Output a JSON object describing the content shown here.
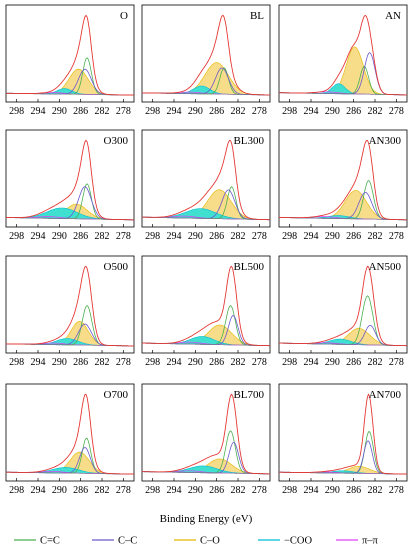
{
  "colors": {
    "C=C": "#4caf50",
    "C–C": "#6a5acd",
    "C–O": "#e6b800",
    "-COO": "#00bcd4",
    "π–π": "#e040fb",
    "envelope": "#e53935",
    "fill_CO": "#f7dc8a",
    "fill_COO": "#40e0d0"
  },
  "chart_data": {
    "type": "line",
    "xlabel": "Binding Energy (eV)",
    "xlim": [
      300,
      276
    ],
    "x_ticks": [
      298,
      294,
      290,
      286,
      282,
      278
    ],
    "legend_position": "bottom",
    "legend": [
      "C=C",
      "C–C",
      "C–O",
      "−COO",
      "π–π"
    ],
    "panels": [
      {
        "title": "O",
        "peaks": {
          "CC_sp2": [
            284.8,
            0.8,
            0.8
          ],
          "CC": [
            285.2,
            1.2,
            0.55
          ],
          "CO": [
            286.4,
            1.8,
            0.55
          ],
          "COO": [
            289.0,
            1.4,
            0.12
          ],
          "pipi": [
            291.0,
            2.0,
            0.03
          ]
        }
      },
      {
        "title": "BL",
        "peaks": {
          "CC_sp2": [
            284.6,
            0.8,
            0.5
          ],
          "CC": [
            285.0,
            1.2,
            0.5
          ],
          "CO": [
            286.0,
            2.2,
            0.6
          ],
          "COO": [
            288.8,
            1.5,
            0.15
          ],
          "pipi": [
            291.0,
            2.0,
            0.03
          ]
        }
      },
      {
        "title": "AN",
        "peaks": {
          "CC_sp2": [
            284.0,
            0.8,
            0.5
          ],
          "CC": [
            283.0,
            1.0,
            0.75
          ],
          "CO": [
            285.8,
            1.6,
            0.85
          ],
          "COO": [
            288.8,
            1.2,
            0.18
          ],
          "pipi": [
            291.0,
            2.0,
            0.03
          ]
        }
      },
      {
        "title": "O300",
        "peaks": {
          "CC_sp2": [
            284.8,
            0.8,
            0.6
          ],
          "CC": [
            285.2,
            1.2,
            0.55
          ],
          "CO": [
            286.8,
            2.0,
            0.25
          ],
          "COO": [
            289.5,
            2.8,
            0.18
          ],
          "pipi": [
            292.0,
            2.0,
            0.03
          ]
        }
      },
      {
        "title": "BL300",
        "peaks": {
          "CC_sp2": [
            283.2,
            0.8,
            0.5
          ],
          "CC": [
            283.8,
            1.2,
            0.45
          ],
          "CO": [
            285.5,
            2.2,
            0.45
          ],
          "COO": [
            289.0,
            2.8,
            0.15
          ],
          "pipi": [
            292.0,
            2.0,
            0.03
          ]
        }
      },
      {
        "title": "AN300",
        "peaks": {
          "CC_sp2": [
            283.2,
            0.9,
            0.65
          ],
          "CC": [
            283.8,
            1.2,
            0.45
          ],
          "CO": [
            285.6,
            2.0,
            0.48
          ],
          "COO": [
            288.8,
            2.0,
            0.05
          ],
          "pipi": [
            291.5,
            2.0,
            0.03
          ]
        }
      },
      {
        "title": "O500",
        "peaks": {
          "CC_sp2": [
            284.8,
            0.9,
            0.75
          ],
          "CC": [
            285.2,
            1.2,
            0.4
          ],
          "CO": [
            286.2,
            1.6,
            0.45
          ],
          "COO": [
            288.5,
            2.0,
            0.12
          ],
          "pipi": [
            291.0,
            2.0,
            0.03
          ]
        }
      },
      {
        "title": "BL500",
        "peaks": {
          "CC_sp2": [
            283.4,
            0.9,
            0.6
          ],
          "CC": [
            282.9,
            0.9,
            0.45
          ],
          "CO": [
            285.4,
            2.2,
            0.3
          ],
          "COO": [
            288.7,
            2.2,
            0.12
          ],
          "pipi": [
            291.0,
            2.0,
            0.03
          ]
        }
      },
      {
        "title": "AN500",
        "peaks": {
          "CC_sp2": [
            283.4,
            1.0,
            0.75
          ],
          "CC": [
            282.9,
            1.0,
            0.3
          ],
          "CO": [
            285.0,
            2.0,
            0.25
          ],
          "COO": [
            288.5,
            2.0,
            0.08
          ],
          "pipi": [
            291.0,
            2.0,
            0.02
          ]
        }
      },
      {
        "title": "O700",
        "peaks": {
          "CC_sp2": [
            284.9,
            0.8,
            0.75
          ],
          "CC": [
            285.2,
            1.0,
            0.55
          ],
          "CO": [
            286.2,
            1.8,
            0.45
          ],
          "COO": [
            288.8,
            2.4,
            0.12
          ],
          "pipi": [
            291.0,
            2.0,
            0.03
          ]
        }
      },
      {
        "title": "BL700",
        "peaks": {
          "CC_sp2": [
            283.4,
            0.9,
            0.75
          ],
          "CC": [
            282.8,
            0.9,
            0.55
          ],
          "CO": [
            285.4,
            2.2,
            0.25
          ],
          "COO": [
            288.5,
            2.6,
            0.12
          ],
          "pipi": [
            291.0,
            2.0,
            0.03
          ]
        }
      },
      {
        "title": "AN700",
        "peaks": {
          "CC_sp2": [
            283.1,
            0.8,
            0.9
          ],
          "CC": [
            283.3,
            0.8,
            0.7
          ],
          "CO": [
            285.0,
            2.0,
            0.15
          ],
          "COO": [
            288.0,
            2.0,
            0.05
          ],
          "pipi": [
            291.0,
            2.0,
            0.02
          ]
        }
      }
    ]
  }
}
